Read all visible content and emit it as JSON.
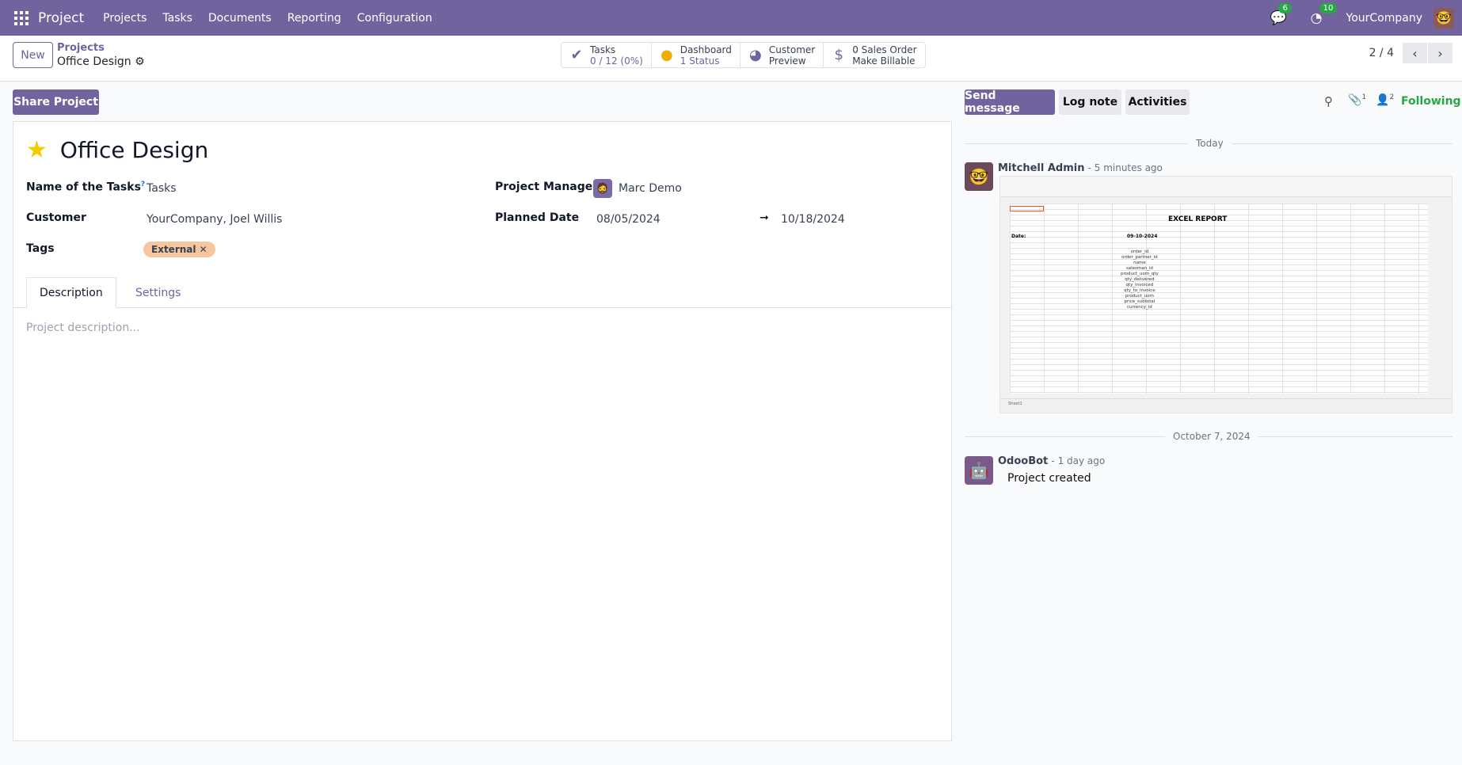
{
  "navbar": {
    "app": "Project",
    "menus": [
      "Projects",
      "Tasks",
      "Documents",
      "Reporting",
      "Configuration"
    ],
    "messages_count": "6",
    "activities_count": "10",
    "company": "YourCompany",
    "color": "#71639e"
  },
  "control_panel": {
    "new_label": "New",
    "breadcrumb_parent": "Projects",
    "breadcrumb_current": "Office Design",
    "stats": [
      {
        "icon": "check-icon",
        "label": "Tasks",
        "value": "0 / 12 (0%)"
      },
      {
        "icon": "status-dot-icon",
        "label": "Dashboard",
        "value": "1 Status"
      },
      {
        "icon": "globe-icon",
        "label": "Customer",
        "value": "Preview"
      },
      {
        "icon": "dollar-icon",
        "label": "0 Sales Order",
        "value": "Make Billable"
      }
    ],
    "pager": "2 / 4"
  },
  "form": {
    "share_label": "Share Project",
    "title": "Office Design",
    "starred": true,
    "fields": {
      "tasks_label": "Name of the Tasks",
      "tasks_help": "?",
      "tasks_value": "Tasks",
      "customer_label": "Customer",
      "customer_value": "YourCompany, Joel Willis",
      "tags_label": "Tags",
      "tag": "External",
      "manager_label": "Project Manager",
      "manager_value": "Marc Demo",
      "planned_label": "Planned Date",
      "date_start": "08/05/2024",
      "date_end": "10/18/2024"
    },
    "tabs": [
      "Description",
      "Settings"
    ],
    "description_placeholder": "Project description..."
  },
  "chatter": {
    "send_message": "Send message",
    "log_note": "Log note",
    "activities": "Activities",
    "attachments_count": "1",
    "followers_count": "2",
    "following": "Following",
    "groups": [
      {
        "date": "Today",
        "author": "Mitchell Admin",
        "time": "- 5 minutes ago",
        "attachment": {
          "title": "EXCEL REPORT",
          "date_label": "Date:",
          "date_value": "09-10-2024",
          "fields": [
            "order_id",
            "order_partner_id",
            "name",
            "salesman_id",
            "product_uom_qty",
            "qty_delivered",
            "qty_invoiced",
            "qty_to_invoice",
            "product_uom",
            "price_subtotal",
            "currency_id"
          ],
          "sheet_tab": "Sheet1"
        }
      },
      {
        "date": "October 7, 2024",
        "author": "OdooBot",
        "time": "- 1 day ago",
        "body": "Project created"
      }
    ]
  }
}
